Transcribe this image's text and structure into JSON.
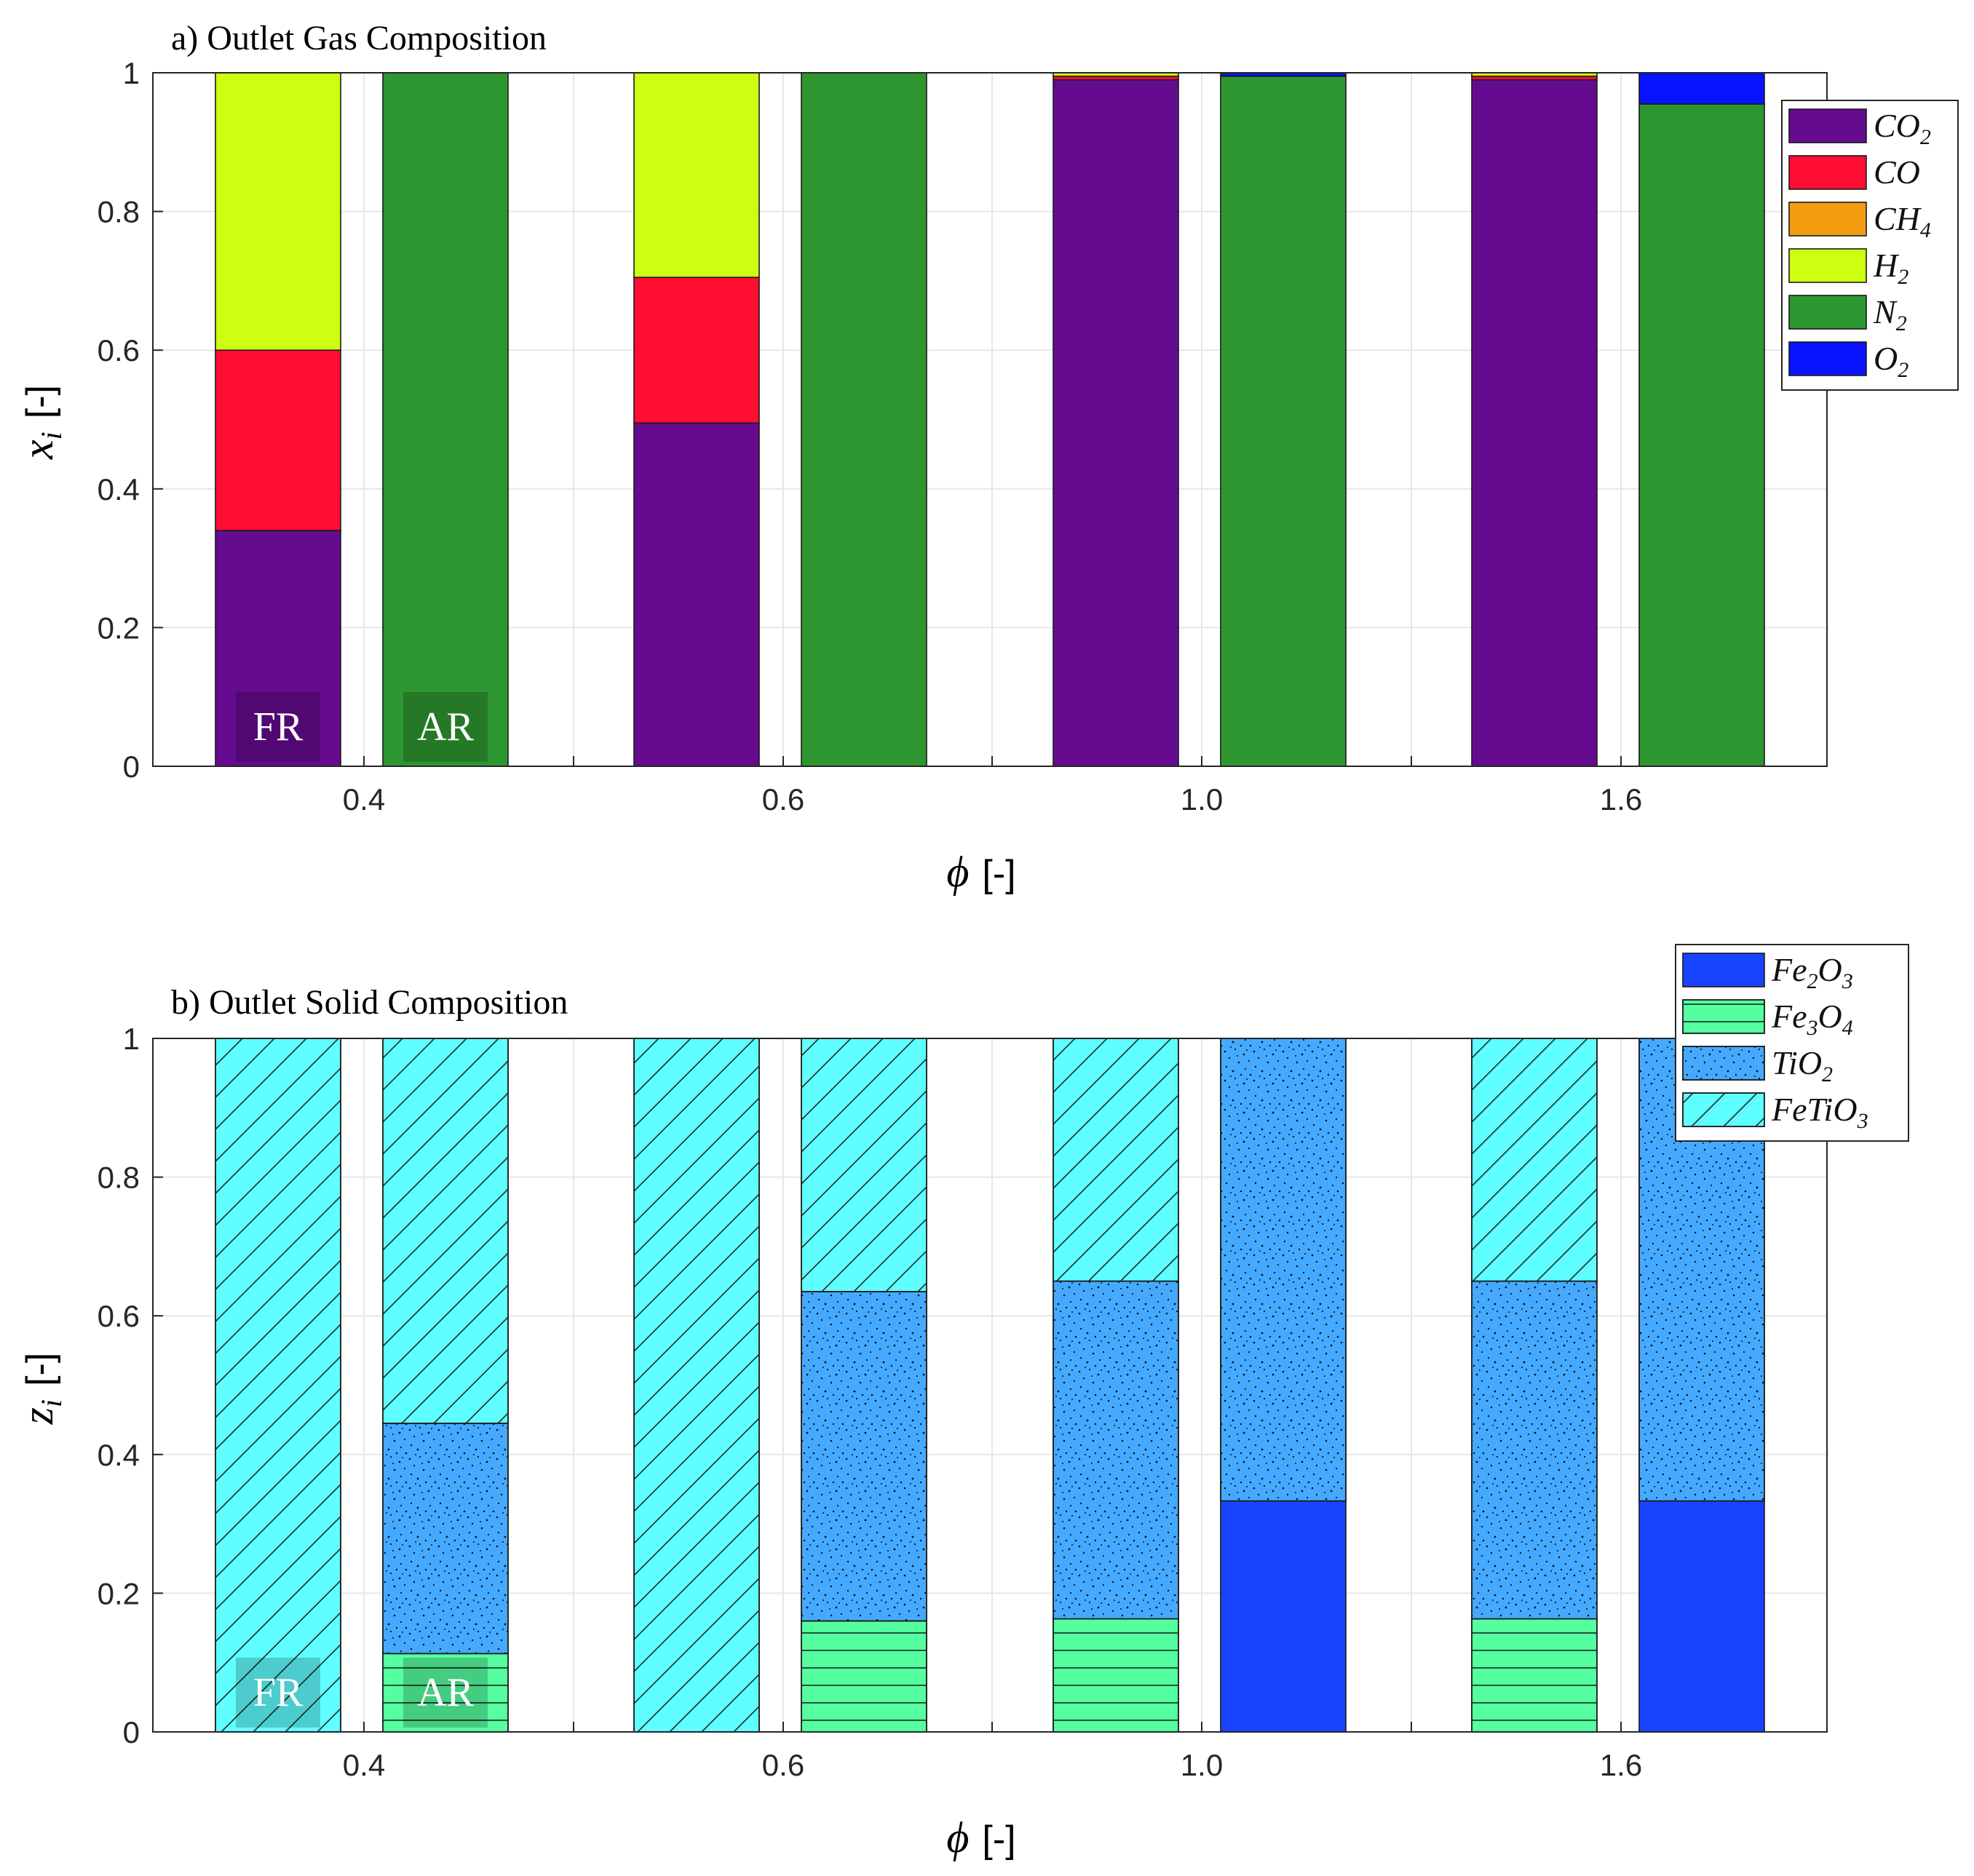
{
  "chart_data": [
    {
      "type": "bar",
      "stacked": true,
      "title": "a) Outlet Gas Composition",
      "xlabel": "ϕ [-]",
      "ylabel": "x_i [-]",
      "ylabel_var": "x",
      "ylabel_sub": "i",
      "ylabel_unit": "[-]",
      "xlabel_var": "ϕ",
      "xlabel_unit": "[-]",
      "ylim": [
        0,
        1
      ],
      "yticks": [
        "0",
        "0.2",
        "0.4",
        "0.6",
        "0.8",
        "1"
      ],
      "categories": [
        "0.4",
        "0.6",
        "1.0",
        "1.6"
      ],
      "bar_labels": [
        "FR",
        "AR"
      ],
      "legend_position": "top-right",
      "series": [
        {
          "name": "CO2",
          "label_base": "CO",
          "label_sub": "2",
          "color": "#650B8F",
          "pattern": "none",
          "values": [
            [
              0.34,
              0.0
            ],
            [
              0.495,
              0.0
            ],
            [
              0.99,
              0.0
            ],
            [
              0.99,
              0.0
            ]
          ]
        },
        {
          "name": "CO",
          "label_base": "CO",
          "label_sub": "",
          "color": "#FF0D33",
          "pattern": "none",
          "values": [
            [
              0.26,
              0.0
            ],
            [
              0.21,
              0.0
            ],
            [
              0.005,
              0.0
            ],
            [
              0.005,
              0.0
            ]
          ]
        },
        {
          "name": "CH4",
          "label_base": "CH",
          "label_sub": "4",
          "color": "#F39C12",
          "pattern": "none",
          "values": [
            [
              0.0,
              0.0
            ],
            [
              0.0,
              0.0
            ],
            [
              0.0,
              0.0
            ],
            [
              0.0,
              0.0
            ]
          ]
        },
        {
          "name": "H2",
          "label_base": "H",
          "label_sub": "2",
          "color": "#CCFF11",
          "pattern": "none",
          "values": [
            [
              0.4,
              0.0
            ],
            [
              0.295,
              0.0
            ],
            [
              0.005,
              0.0
            ],
            [
              0.005,
              0.0
            ]
          ]
        },
        {
          "name": "N2",
          "label_base": "N",
          "label_sub": "2",
          "color": "#2E9630",
          "pattern": "none",
          "values": [
            [
              0.0,
              1.0
            ],
            [
              0.0,
              1.0
            ],
            [
              0.0,
              0.995
            ],
            [
              0.0,
              0.955
            ]
          ]
        },
        {
          "name": "O2",
          "label_base": "O",
          "label_sub": "2",
          "color": "#0A13FF",
          "pattern": "none",
          "values": [
            [
              0.0,
              0.0
            ],
            [
              0.0,
              0.0
            ],
            [
              0.0,
              0.005
            ],
            [
              0.0,
              0.045
            ]
          ]
        }
      ]
    },
    {
      "type": "bar",
      "stacked": true,
      "title": "b) Outlet Solid Composition",
      "xlabel": "ϕ [-]",
      "ylabel": "z_i [-]",
      "ylabel_var": "z",
      "ylabel_sub": "i",
      "ylabel_unit": "[-]",
      "xlabel_var": "ϕ",
      "xlabel_unit": "[-]",
      "ylim": [
        0,
        1
      ],
      "yticks": [
        "0",
        "0.2",
        "0.4",
        "0.6",
        "0.8",
        "1"
      ],
      "categories": [
        "0.4",
        "0.6",
        "1.0",
        "1.6"
      ],
      "bar_labels": [
        "FR",
        "AR"
      ],
      "legend_position": "top-right",
      "series": [
        {
          "name": "Fe2O3",
          "label_base": "Fe",
          "label_sub": "2",
          "label_base2": "O",
          "label_sub2": "3",
          "color": "#1843FF",
          "pattern": "none",
          "values": [
            [
              0.0,
              0.0
            ],
            [
              0.0,
              0.0
            ],
            [
              0.0,
              0.333
            ],
            [
              0.0,
              0.333
            ]
          ]
        },
        {
          "name": "Fe3O4",
          "label_base": "Fe",
          "label_sub": "3",
          "label_base2": "O",
          "label_sub2": "4",
          "color": "#55FFA0",
          "pattern": "horizontal",
          "values": [
            [
              0.0,
              0.113
            ],
            [
              0.0,
              0.16
            ],
            [
              0.163,
              0.0
            ],
            [
              0.163,
              0.0
            ]
          ]
        },
        {
          "name": "TiO2",
          "label_base": "TiO",
          "label_sub": "2",
          "label_base2": "",
          "label_sub2": "",
          "color": "#45AAFF",
          "pattern": "dots",
          "values": [
            [
              0.0,
              0.332
            ],
            [
              0.0,
              0.475
            ],
            [
              0.487,
              0.667
            ],
            [
              0.487,
              0.667
            ]
          ]
        },
        {
          "name": "FeTiO3",
          "label_base": "FeTiO",
          "label_sub": "3",
          "label_base2": "",
          "label_sub2": "",
          "color": "#5FFFFF",
          "pattern": "diagonal",
          "values": [
            [
              1.0,
              0.555
            ],
            [
              1.0,
              0.365
            ],
            [
              0.35,
              0.0
            ],
            [
              0.35,
              0.0
            ]
          ]
        }
      ]
    }
  ]
}
